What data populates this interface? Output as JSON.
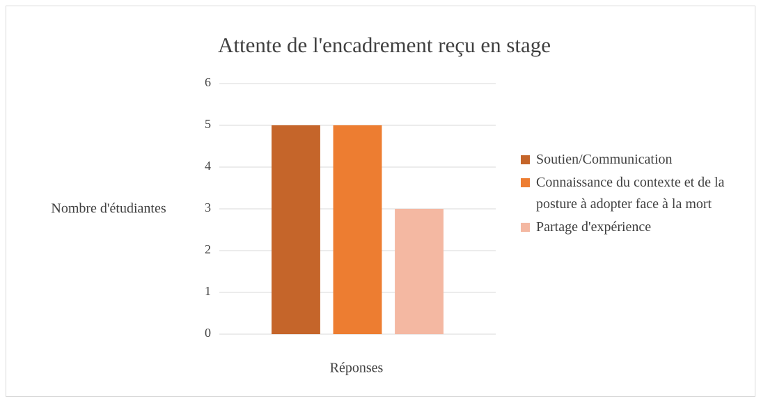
{
  "chart_data": {
    "type": "bar",
    "title": "Attente de l'encadrement reçu en stage",
    "x_label": "Réponses",
    "y_label": "Nombre d'étudiantes",
    "categories": [
      null
    ],
    "series": [
      {
        "name": "Soutien/Communication",
        "color": "#c5652a",
        "values": [
          5
        ]
      },
      {
        "name": "Connaissance du contexte et de la posture à adopter face à la mort",
        "color": "#ed7d31",
        "values": [
          5
        ]
      },
      {
        "name": "Partage d'expérience",
        "color": "#f4b8a2",
        "values": [
          3
        ]
      }
    ],
    "ylim": [
      0,
      6
    ],
    "yticks": [
      0,
      1,
      2,
      3,
      4,
      5,
      6
    ],
    "grid": true,
    "legend": "right"
  }
}
